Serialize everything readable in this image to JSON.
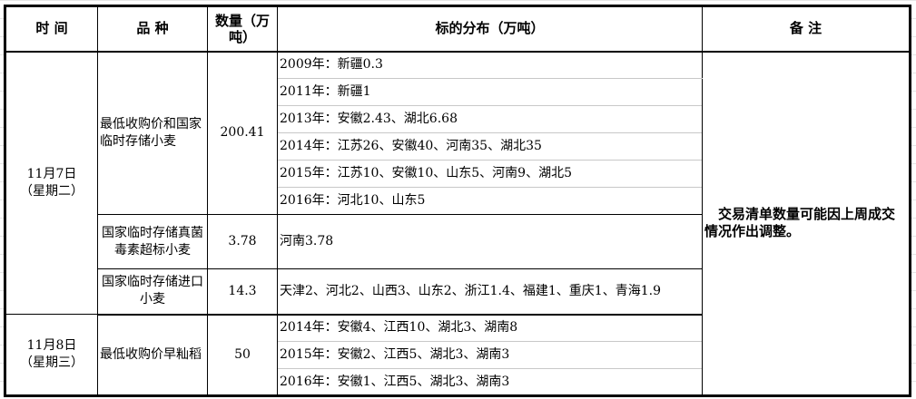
{
  "headers": {
    "time": "时 间",
    "variety": "品 种",
    "quantity": "数量（万吨）",
    "distribution": "标的分布（万吨）",
    "remark": "备 注"
  },
  "groups": [
    {
      "date": "11月7日",
      "weekday": "（星期二）",
      "items": [
        {
          "variety": "最低收购价和国家临时存储小麦",
          "quantity": "200.41",
          "distribution": [
            "2009年：新疆0.3",
            "2011年：新疆1",
            "2013年：安徽2.43、湖北6.68",
            "2014年：江苏26、安徽40、河南35、湖北35",
            "2015年：江苏10、安徽10、山东5、河南9、湖北5",
            "2016年：河北10、山东5"
          ]
        },
        {
          "variety": "国家临时存储真菌毒素超标小麦",
          "quantity": "3.78",
          "distribution": [
            "河南3.78"
          ]
        },
        {
          "variety": "国家临时存储进口小麦",
          "quantity": "14.3",
          "distribution": [
            "天津2、河北2、山西3、山东2、浙江1.4、福建1、重庆1、青海1.9"
          ]
        }
      ]
    },
    {
      "date": "11月8日",
      "weekday": "（星期三）",
      "items": [
        {
          "variety": "最低收购价早籼稻",
          "quantity": "50",
          "distribution": [
            "2014年：安徽4、江西10、湖北3、湖南8",
            "2015年：安徽2、江西5、湖北3、湖南3",
            "2016年：安徽1、江西5、湖北3、湖南3"
          ]
        }
      ]
    }
  ],
  "remark": "交易清单数量可能因上周成交情况作出调整。"
}
